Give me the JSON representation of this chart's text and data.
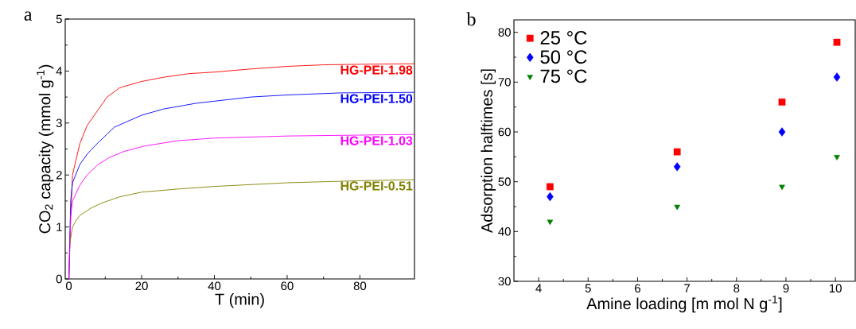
{
  "chart_data": [
    {
      "type": "line",
      "title": "a",
      "xlabel": "T (min)",
      "ylabel": "CO$_{2}$ capacity (mmol g$^{-1}$)",
      "xlim": [
        -1,
        95
      ],
      "ylim": [
        0,
        5
      ],
      "xticks": [
        0,
        20,
        40,
        60,
        80
      ],
      "yticks": [
        0,
        1,
        2,
        3,
        4,
        5
      ],
      "legend": false,
      "marker": "none",
      "series": [
        {
          "name": "HG-PEI-1.98",
          "color": "#ff0000",
          "x": [
            0,
            0.5,
            1,
            3,
            5,
            8,
            10.5,
            14,
            20,
            26,
            33,
            40,
            50,
            60,
            70,
            80,
            95
          ],
          "values": [
            0,
            1.2,
            2.0,
            2.6,
            2.95,
            3.25,
            3.5,
            3.68,
            3.8,
            3.88,
            3.95,
            3.98,
            4.04,
            4.09,
            4.12,
            4.13,
            4.14
          ]
        },
        {
          "name": "HG-PEI-1.50",
          "color": "#0000ff",
          "x": [
            0,
            0.5,
            1,
            3,
            5,
            8,
            12.5,
            20,
            26,
            35,
            50,
            60,
            75,
            95
          ],
          "values": [
            0,
            1.5,
            1.85,
            2.2,
            2.4,
            2.62,
            2.92,
            3.15,
            3.27,
            3.38,
            3.5,
            3.54,
            3.58,
            3.59
          ]
        },
        {
          "name": "HG-PEI-1.03",
          "color": "#ff00ff",
          "x": [
            0,
            0.5,
            1,
            3,
            5,
            8,
            11,
            15,
            21,
            30,
            40,
            60,
            95
          ],
          "values": [
            0,
            1.2,
            1.5,
            1.8,
            2.0,
            2.2,
            2.33,
            2.45,
            2.56,
            2.66,
            2.71,
            2.75,
            2.78
          ]
        },
        {
          "name": "HG-PEI-0.51",
          "color": "#808000",
          "x": [
            0.3,
            1,
            2,
            3,
            6,
            9,
            14,
            20,
            30,
            40,
            60,
            80,
            95
          ],
          "values": [
            0.7,
            1.0,
            1.13,
            1.22,
            1.36,
            1.46,
            1.58,
            1.67,
            1.73,
            1.78,
            1.85,
            1.89,
            1.91
          ]
        }
      ]
    },
    {
      "type": "scatter",
      "title": "b",
      "xlabel": "Amine loading [m mol N g$^{-1}$]",
      "ylabel": "Adsorption halftimes [s]",
      "xlim": [
        3.5,
        10.4
      ],
      "ylim": [
        30,
        82.5
      ],
      "xticks": [
        4,
        5,
        6,
        7,
        8,
        9,
        10
      ],
      "yticks": [
        30,
        40,
        50,
        60,
        70,
        80
      ],
      "legend": "top left",
      "x": [
        4.23,
        6.8,
        8.92,
        10.03
      ],
      "series": [
        {
          "name": "25 °C",
          "color": "#ff0000",
          "marker": "square",
          "values": [
            49,
            56,
            66,
            78
          ]
        },
        {
          "name": "50 °C",
          "color": "#0000ff",
          "marker": "diamond",
          "values": [
            47,
            53,
            60,
            71
          ]
        },
        {
          "name": "75 °C",
          "color": "#008000",
          "marker": "triangle",
          "values": [
            42,
            45,
            49,
            55
          ]
        }
      ]
    }
  ]
}
